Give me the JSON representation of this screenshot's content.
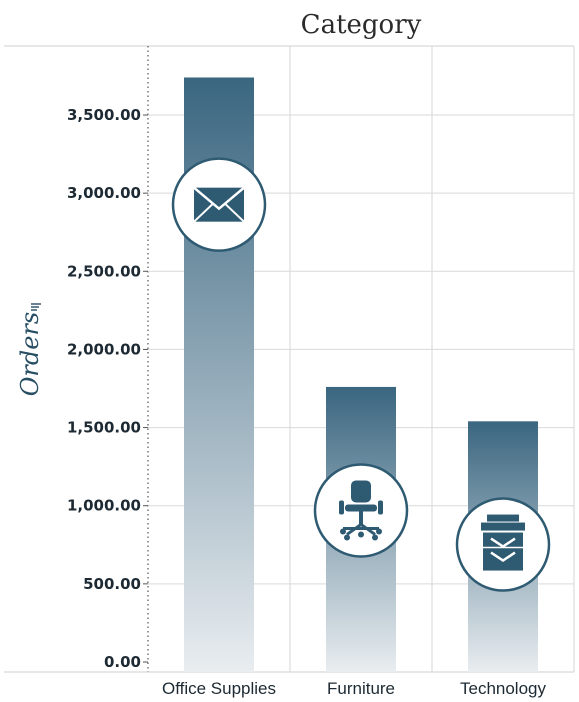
{
  "chart_data": {
    "type": "bar",
    "title": "Category",
    "xlabel": "",
    "ylabel": "Orders",
    "categories": [
      "Office Supplies",
      "Furniture",
      "Technology"
    ],
    "values": [
      3740,
      1760,
      1540
    ],
    "ylim": [
      0,
      3900
    ],
    "yticks": [
      "0.00",
      "500.00",
      "1,000.00",
      "1,500.00",
      "2,000.00",
      "2,500.00",
      "3,000.00",
      "3,500.00"
    ],
    "ytick_values": [
      0,
      500,
      1000,
      1500,
      2000,
      2500,
      3000,
      3500
    ],
    "icons": [
      "envelope-icon",
      "office-chair-icon",
      "copier-icon"
    ],
    "grid": true,
    "bar_color": "#3a6680",
    "bar_fade_color": "#e9edf0"
  }
}
